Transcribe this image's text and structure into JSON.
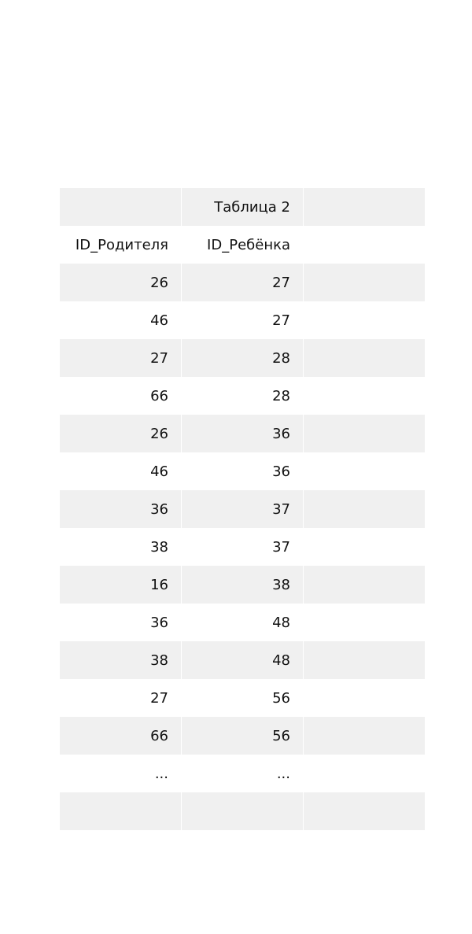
{
  "table": {
    "title": "Таблица 2",
    "headers": [
      "ID_Родителя",
      "ID_Ребёнка"
    ],
    "rows": [
      [
        "26",
        "27"
      ],
      [
        "46",
        "27"
      ],
      [
        "27",
        "28"
      ],
      [
        "66",
        "28"
      ],
      [
        "26",
        "36"
      ],
      [
        "46",
        "36"
      ],
      [
        "36",
        "37"
      ],
      [
        "38",
        "37"
      ],
      [
        "16",
        "38"
      ],
      [
        "36",
        "48"
      ],
      [
        "38",
        "48"
      ],
      [
        "27",
        "56"
      ],
      [
        "66",
        "56"
      ],
      [
        "...",
        "..."
      ]
    ]
  }
}
